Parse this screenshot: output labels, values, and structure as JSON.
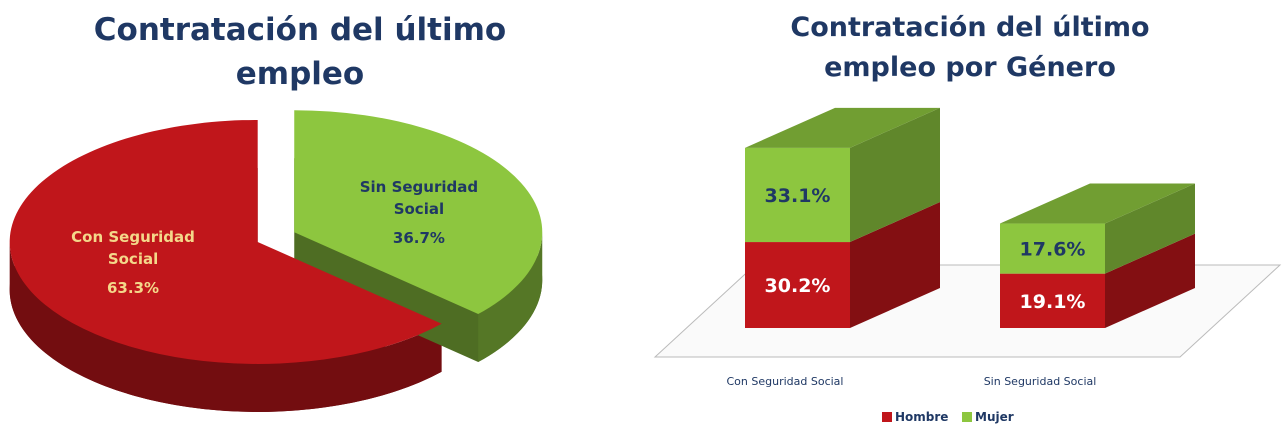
{
  "chart_data": [
    {
      "type": "pie3d",
      "title": "Contratación del último empleo",
      "categories": [
        "Con Seguridad Social",
        "Sin Seguridad Social"
      ],
      "values": [
        63.3,
        36.7
      ],
      "value_labels": [
        "63.3%",
        "36.7%"
      ],
      "colors": [
        "#c0161b",
        "#8dc63f"
      ]
    },
    {
      "type": "bar3d_stacked",
      "title": "Contratación del último empleo por Género",
      "categories": [
        "Con Seguridad Social",
        "Sin Seguridad Social"
      ],
      "ylim": [
        0,
        65
      ],
      "series": [
        {
          "name": "Hombre",
          "color": "#c0161b",
          "values": [
            30.2,
            19.1
          ],
          "value_labels": [
            "30.2%",
            "19.1%"
          ]
        },
        {
          "name": "Mujer",
          "color": "#8dc63f",
          "values": [
            33.1,
            17.6
          ],
          "value_labels": [
            "33.1%",
            "17.6%"
          ]
        }
      ],
      "legend": "bottom"
    }
  ]
}
